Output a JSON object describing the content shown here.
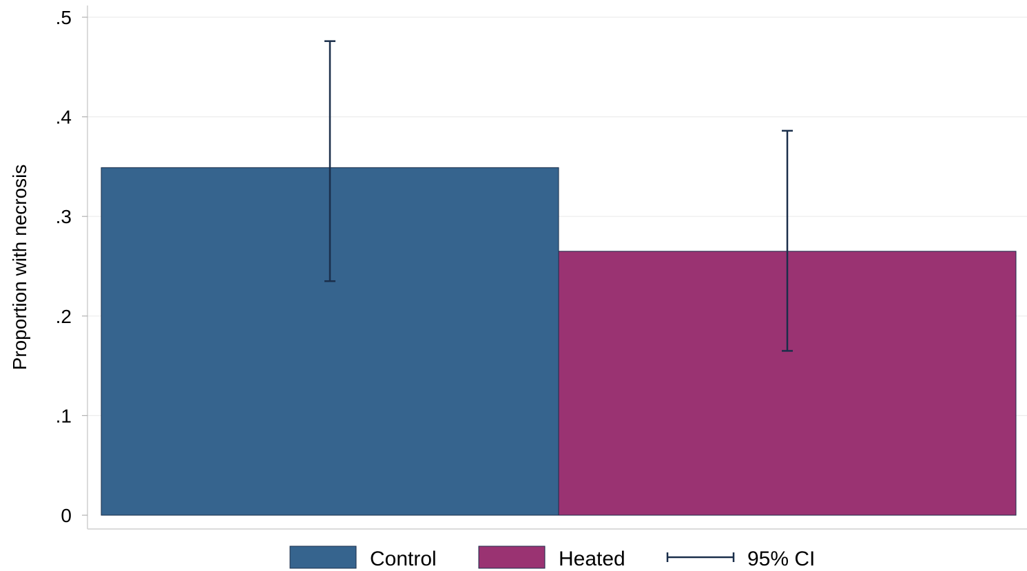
{
  "chart_data": {
    "type": "bar",
    "title": "",
    "xlabel": "",
    "ylabel": "Proportion with necrosis",
    "ylim": [
      0,
      0.5
    ],
    "yticks": [
      0,
      0.1,
      0.2,
      0.3,
      0.4,
      0.5
    ],
    "ytick_labels": [
      "0",
      ".1",
      ".2",
      ".3",
      ".4",
      ".5"
    ],
    "grid": true,
    "legend_position": "bottom",
    "series": [
      {
        "name": "Control",
        "value": 0.349,
        "ci_low": 0.235,
        "ci_high": 0.476,
        "color": "#36648e"
      },
      {
        "name": "Heated",
        "value": 0.265,
        "ci_low": 0.165,
        "ci_high": 0.386,
        "color": "#9a3372"
      }
    ],
    "ci_label": "95% CI",
    "ci_color": "#1a2e4a"
  }
}
